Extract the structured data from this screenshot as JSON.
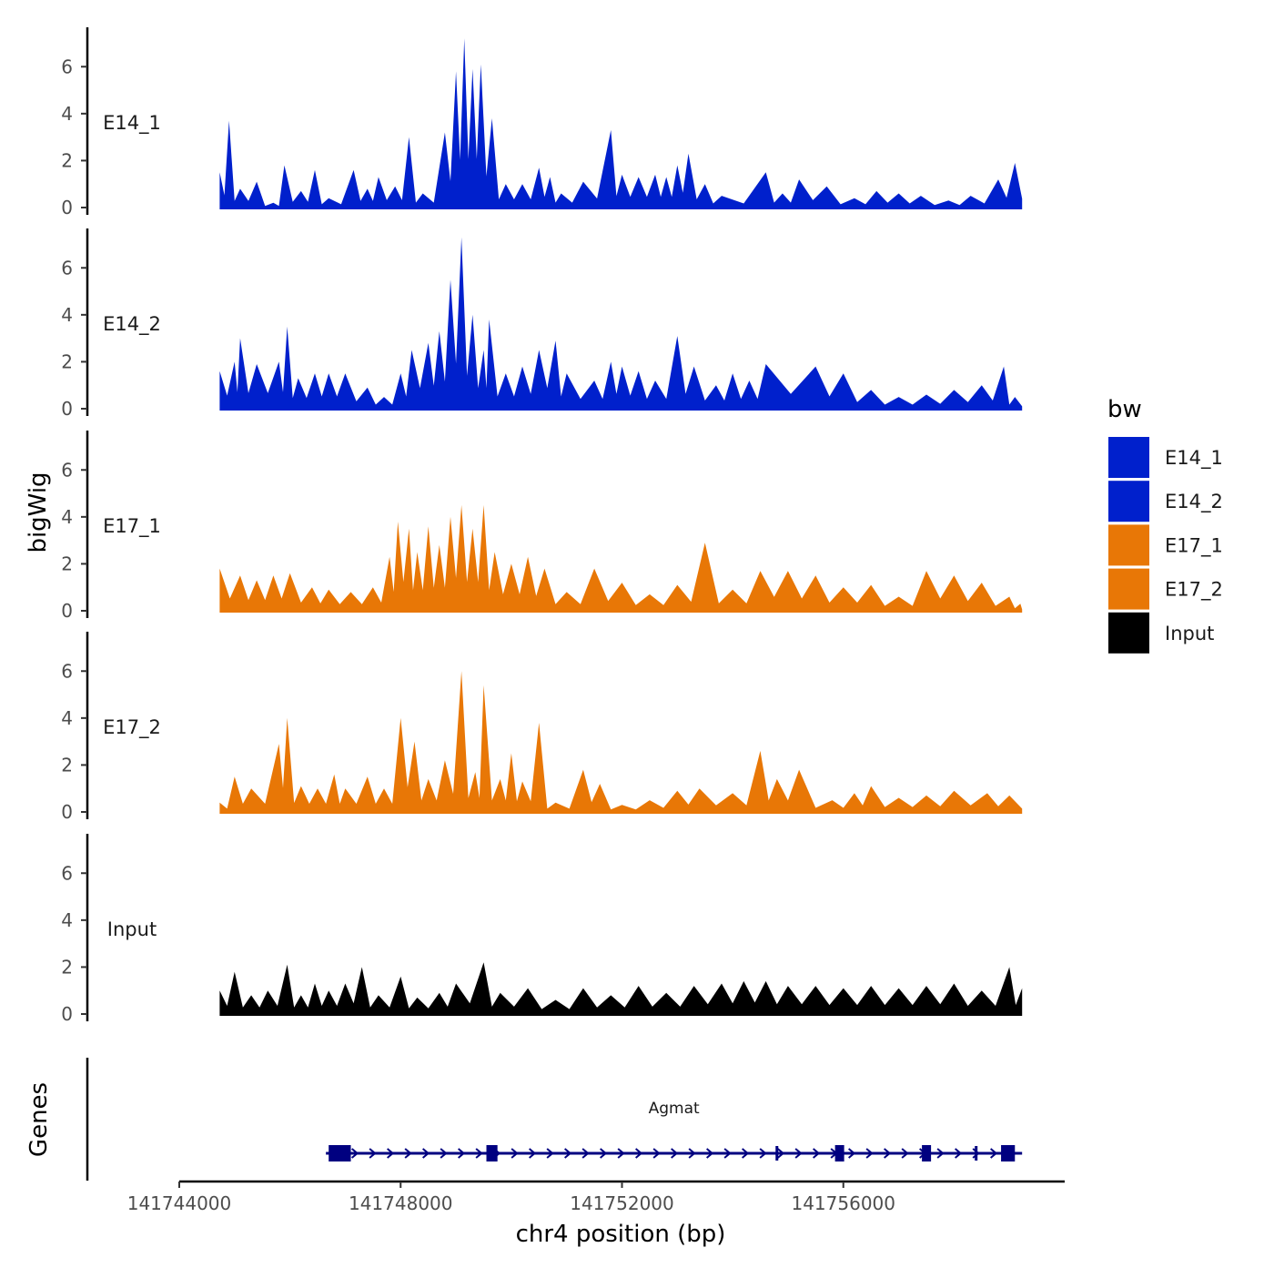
{
  "chart_data": {
    "type": "area",
    "xlabel": "chr4 position (bp)",
    "ylabel": "bigWig",
    "xlim": [
      141744000,
      141760000
    ],
    "x_ticks": [
      141744000,
      141748000,
      141752000,
      141756000
    ],
    "x_tick_labels": [
      "141744000",
      "141748000",
      "141752000",
      "141756000"
    ],
    "ylim": [
      0,
      7.6
    ],
    "y_ticks": [
      0,
      2,
      4,
      6
    ],
    "y_tick_labels": [
      "0",
      "2",
      "4",
      "6"
    ],
    "data_range": [
      141744730,
      141759230
    ],
    "legend": {
      "title": "bw",
      "placement": "right",
      "entries": [
        {
          "name": "E14_1",
          "color": "#0020CC"
        },
        {
          "name": "E14_2",
          "color": "#0020CC"
        },
        {
          "name": "E17_1",
          "color": "#E87706"
        },
        {
          "name": "E17_2",
          "color": "#E87706"
        },
        {
          "name": "Input",
          "color": "#000000"
        }
      ]
    },
    "series": [
      {
        "name": "E14_1",
        "label": "E14_1",
        "color": "#0020CC",
        "peaks": [
          [
            141744730,
            1.5
          ],
          [
            141744900,
            3.7
          ],
          [
            141745100,
            0.8
          ],
          [
            141745400,
            1.1
          ],
          [
            141745700,
            0.2
          ],
          [
            141745900,
            1.8
          ],
          [
            141746200,
            0.7
          ],
          [
            141746450,
            1.6
          ],
          [
            141746700,
            0.4
          ],
          [
            141747150,
            1.6
          ],
          [
            141747400,
            0.8
          ],
          [
            141747600,
            1.3
          ],
          [
            141747900,
            0.9
          ],
          [
            141748150,
            3.0
          ],
          [
            141748400,
            0.6
          ],
          [
            141748800,
            3.2
          ],
          [
            141749000,
            5.8
          ],
          [
            141749150,
            7.2
          ],
          [
            141749300,
            5.9
          ],
          [
            141749450,
            6.1
          ],
          [
            141749650,
            3.8
          ],
          [
            141749900,
            1.0
          ],
          [
            141750200,
            1.0
          ],
          [
            141750500,
            1.7
          ],
          [
            141750700,
            1.3
          ],
          [
            141750900,
            0.6
          ],
          [
            141751300,
            1.1
          ],
          [
            141751800,
            3.3
          ],
          [
            141752000,
            1.4
          ],
          [
            141752300,
            1.3
          ],
          [
            141752600,
            1.4
          ],
          [
            141752800,
            1.3
          ],
          [
            141753000,
            1.8
          ],
          [
            141753200,
            2.3
          ],
          [
            141753500,
            1.0
          ],
          [
            141753800,
            0.5
          ],
          [
            141754600,
            1.5
          ],
          [
            141754900,
            0.6
          ],
          [
            141755200,
            1.2
          ],
          [
            141755700,
            0.9
          ],
          [
            141756200,
            0.4
          ],
          [
            141756600,
            0.7
          ],
          [
            141757000,
            0.6
          ],
          [
            141757400,
            0.5
          ],
          [
            141757900,
            0.3
          ],
          [
            141758300,
            0.5
          ],
          [
            141758800,
            1.2
          ],
          [
            141759100,
            1.9
          ]
        ]
      },
      {
        "name": "E14_2",
        "label": "E14_2",
        "color": "#0020CC",
        "peaks": [
          [
            141744730,
            1.6
          ],
          [
            141745000,
            2.0
          ],
          [
            141745100,
            3.0
          ],
          [
            141745400,
            1.9
          ],
          [
            141745800,
            2.0
          ],
          [
            141745950,
            3.5
          ],
          [
            141746150,
            1.3
          ],
          [
            141746450,
            1.5
          ],
          [
            141746700,
            1.5
          ],
          [
            141747000,
            1.5
          ],
          [
            141747400,
            0.9
          ],
          [
            141747700,
            0.5
          ],
          [
            141748000,
            1.5
          ],
          [
            141748200,
            2.5
          ],
          [
            141748500,
            2.8
          ],
          [
            141748700,
            3.3
          ],
          [
            141748900,
            5.5
          ],
          [
            141749100,
            7.3
          ],
          [
            141749300,
            4.0
          ],
          [
            141749500,
            2.5
          ],
          [
            141749600,
            3.8
          ],
          [
            141749900,
            1.5
          ],
          [
            141750200,
            1.8
          ],
          [
            141750500,
            2.5
          ],
          [
            141750800,
            2.9
          ],
          [
            141751000,
            1.5
          ],
          [
            141751500,
            1.2
          ],
          [
            141751800,
            2.0
          ],
          [
            141752000,
            1.8
          ],
          [
            141752300,
            1.6
          ],
          [
            141752600,
            1.2
          ],
          [
            141753000,
            3.1
          ],
          [
            141753300,
            1.8
          ],
          [
            141753700,
            1.0
          ],
          [
            141754000,
            1.5
          ],
          [
            141754300,
            1.2
          ],
          [
            141754600,
            1.9
          ],
          [
            141755500,
            1.8
          ],
          [
            141756000,
            1.5
          ],
          [
            141756500,
            0.8
          ],
          [
            141757000,
            0.5
          ],
          [
            141757500,
            0.6
          ],
          [
            141758000,
            0.8
          ],
          [
            141758500,
            1.0
          ],
          [
            141758900,
            1.8
          ],
          [
            141759100,
            0.5
          ]
        ]
      },
      {
        "name": "E17_1",
        "label": "E17_1",
        "color": "#E87706",
        "peaks": [
          [
            141744730,
            1.8
          ],
          [
            141745100,
            1.5
          ],
          [
            141745400,
            1.3
          ],
          [
            141745700,
            1.5
          ],
          [
            141746000,
            1.6
          ],
          [
            141746400,
            1.0
          ],
          [
            141746700,
            0.9
          ],
          [
            141747100,
            0.8
          ],
          [
            141747500,
            1.0
          ],
          [
            141747800,
            2.3
          ],
          [
            141747950,
            3.8
          ],
          [
            141748150,
            3.5
          ],
          [
            141748300,
            2.5
          ],
          [
            141748500,
            3.6
          ],
          [
            141748700,
            2.8
          ],
          [
            141748900,
            4.0
          ],
          [
            141749100,
            4.5
          ],
          [
            141749300,
            3.5
          ],
          [
            141749500,
            4.5
          ],
          [
            141749700,
            2.5
          ],
          [
            141750000,
            2.0
          ],
          [
            141750300,
            2.3
          ],
          [
            141750600,
            1.8
          ],
          [
            141751000,
            0.8
          ],
          [
            141751500,
            1.8
          ],
          [
            141752000,
            1.2
          ],
          [
            141752500,
            0.7
          ],
          [
            141753000,
            1.1
          ],
          [
            141753500,
            2.9
          ],
          [
            141754000,
            0.9
          ],
          [
            141754500,
            1.7
          ],
          [
            141755000,
            1.7
          ],
          [
            141755500,
            1.5
          ],
          [
            141756000,
            1.0
          ],
          [
            141756500,
            1.1
          ],
          [
            141757000,
            0.6
          ],
          [
            141757500,
            1.7
          ],
          [
            141758000,
            1.5
          ],
          [
            141758500,
            1.2
          ],
          [
            141759000,
            0.6
          ],
          [
            141759200,
            0.3
          ]
        ]
      },
      {
        "name": "E17_2",
        "label": "E17_2",
        "color": "#E87706",
        "peaks": [
          [
            141744730,
            0.4
          ],
          [
            141745000,
            1.5
          ],
          [
            141745300,
            1.0
          ],
          [
            141745800,
            2.9
          ],
          [
            141745950,
            4.0
          ],
          [
            141746200,
            1.1
          ],
          [
            141746500,
            1.0
          ],
          [
            141746800,
            1.6
          ],
          [
            141747000,
            1.0
          ],
          [
            141747400,
            1.5
          ],
          [
            141747700,
            1.0
          ],
          [
            141748000,
            4.0
          ],
          [
            141748250,
            3.0
          ],
          [
            141748500,
            1.4
          ],
          [
            141748800,
            2.2
          ],
          [
            141749100,
            6.0
          ],
          [
            141749350,
            1.7
          ],
          [
            141749500,
            5.4
          ],
          [
            141749800,
            1.4
          ],
          [
            141750000,
            2.5
          ],
          [
            141750200,
            1.3
          ],
          [
            141750500,
            3.8
          ],
          [
            141750800,
            0.4
          ],
          [
            141751300,
            1.8
          ],
          [
            141751600,
            1.2
          ],
          [
            141752000,
            0.3
          ],
          [
            141752500,
            0.5
          ],
          [
            141753000,
            0.9
          ],
          [
            141753400,
            1.0
          ],
          [
            141754000,
            0.8
          ],
          [
            141754500,
            2.6
          ],
          [
            141754800,
            1.4
          ],
          [
            141755200,
            1.8
          ],
          [
            141755800,
            0.5
          ],
          [
            141756200,
            0.8
          ],
          [
            141756500,
            1.1
          ],
          [
            141757000,
            0.6
          ],
          [
            141757500,
            0.7
          ],
          [
            141758000,
            0.9
          ],
          [
            141758600,
            0.8
          ],
          [
            141759000,
            0.7
          ]
        ]
      },
      {
        "name": "Input",
        "label": "Input",
        "color": "#000000",
        "peaks": [
          [
            141744730,
            1.0
          ],
          [
            141745000,
            1.8
          ],
          [
            141745300,
            0.8
          ],
          [
            141745600,
            1.0
          ],
          [
            141745950,
            2.1
          ],
          [
            141746200,
            0.8
          ],
          [
            141746450,
            1.3
          ],
          [
            141746700,
            1.0
          ],
          [
            141747000,
            1.3
          ],
          [
            141747300,
            2.0
          ],
          [
            141747600,
            0.8
          ],
          [
            141748000,
            1.6
          ],
          [
            141748300,
            0.7
          ],
          [
            141748700,
            0.9
          ],
          [
            141749000,
            1.3
          ],
          [
            141749500,
            2.2
          ],
          [
            141749800,
            0.9
          ],
          [
            141750300,
            1.1
          ],
          [
            141750800,
            0.6
          ],
          [
            141751300,
            1.1
          ],
          [
            141751800,
            0.8
          ],
          [
            141752300,
            1.2
          ],
          [
            141752800,
            0.9
          ],
          [
            141753300,
            1.2
          ],
          [
            141753800,
            1.3
          ],
          [
            141754200,
            1.4
          ],
          [
            141754600,
            1.4
          ],
          [
            141755000,
            1.2
          ],
          [
            141755500,
            1.2
          ],
          [
            141756000,
            1.1
          ],
          [
            141756500,
            1.2
          ],
          [
            141757000,
            1.1
          ],
          [
            141757500,
            1.2
          ],
          [
            141758000,
            1.3
          ],
          [
            141758500,
            1.0
          ],
          [
            141759000,
            2.0
          ],
          [
            141759230,
            1.1
          ]
        ]
      }
    ],
    "genes": {
      "label": "Genes",
      "entries": [
        {
          "name": "Agmat",
          "start": 141746650,
          "end": 141759230,
          "strand": "+",
          "color": "#000080",
          "exons": [
            [
              141746700,
              141747100
            ],
            [
              141749550,
              141749750
            ],
            [
              141755850,
              141756000
            ],
            [
              141757420,
              141757560
            ],
            [
              141758850,
              141759100
            ]
          ],
          "tss_markers": [
            141754800,
            141758400
          ]
        }
      ]
    }
  }
}
